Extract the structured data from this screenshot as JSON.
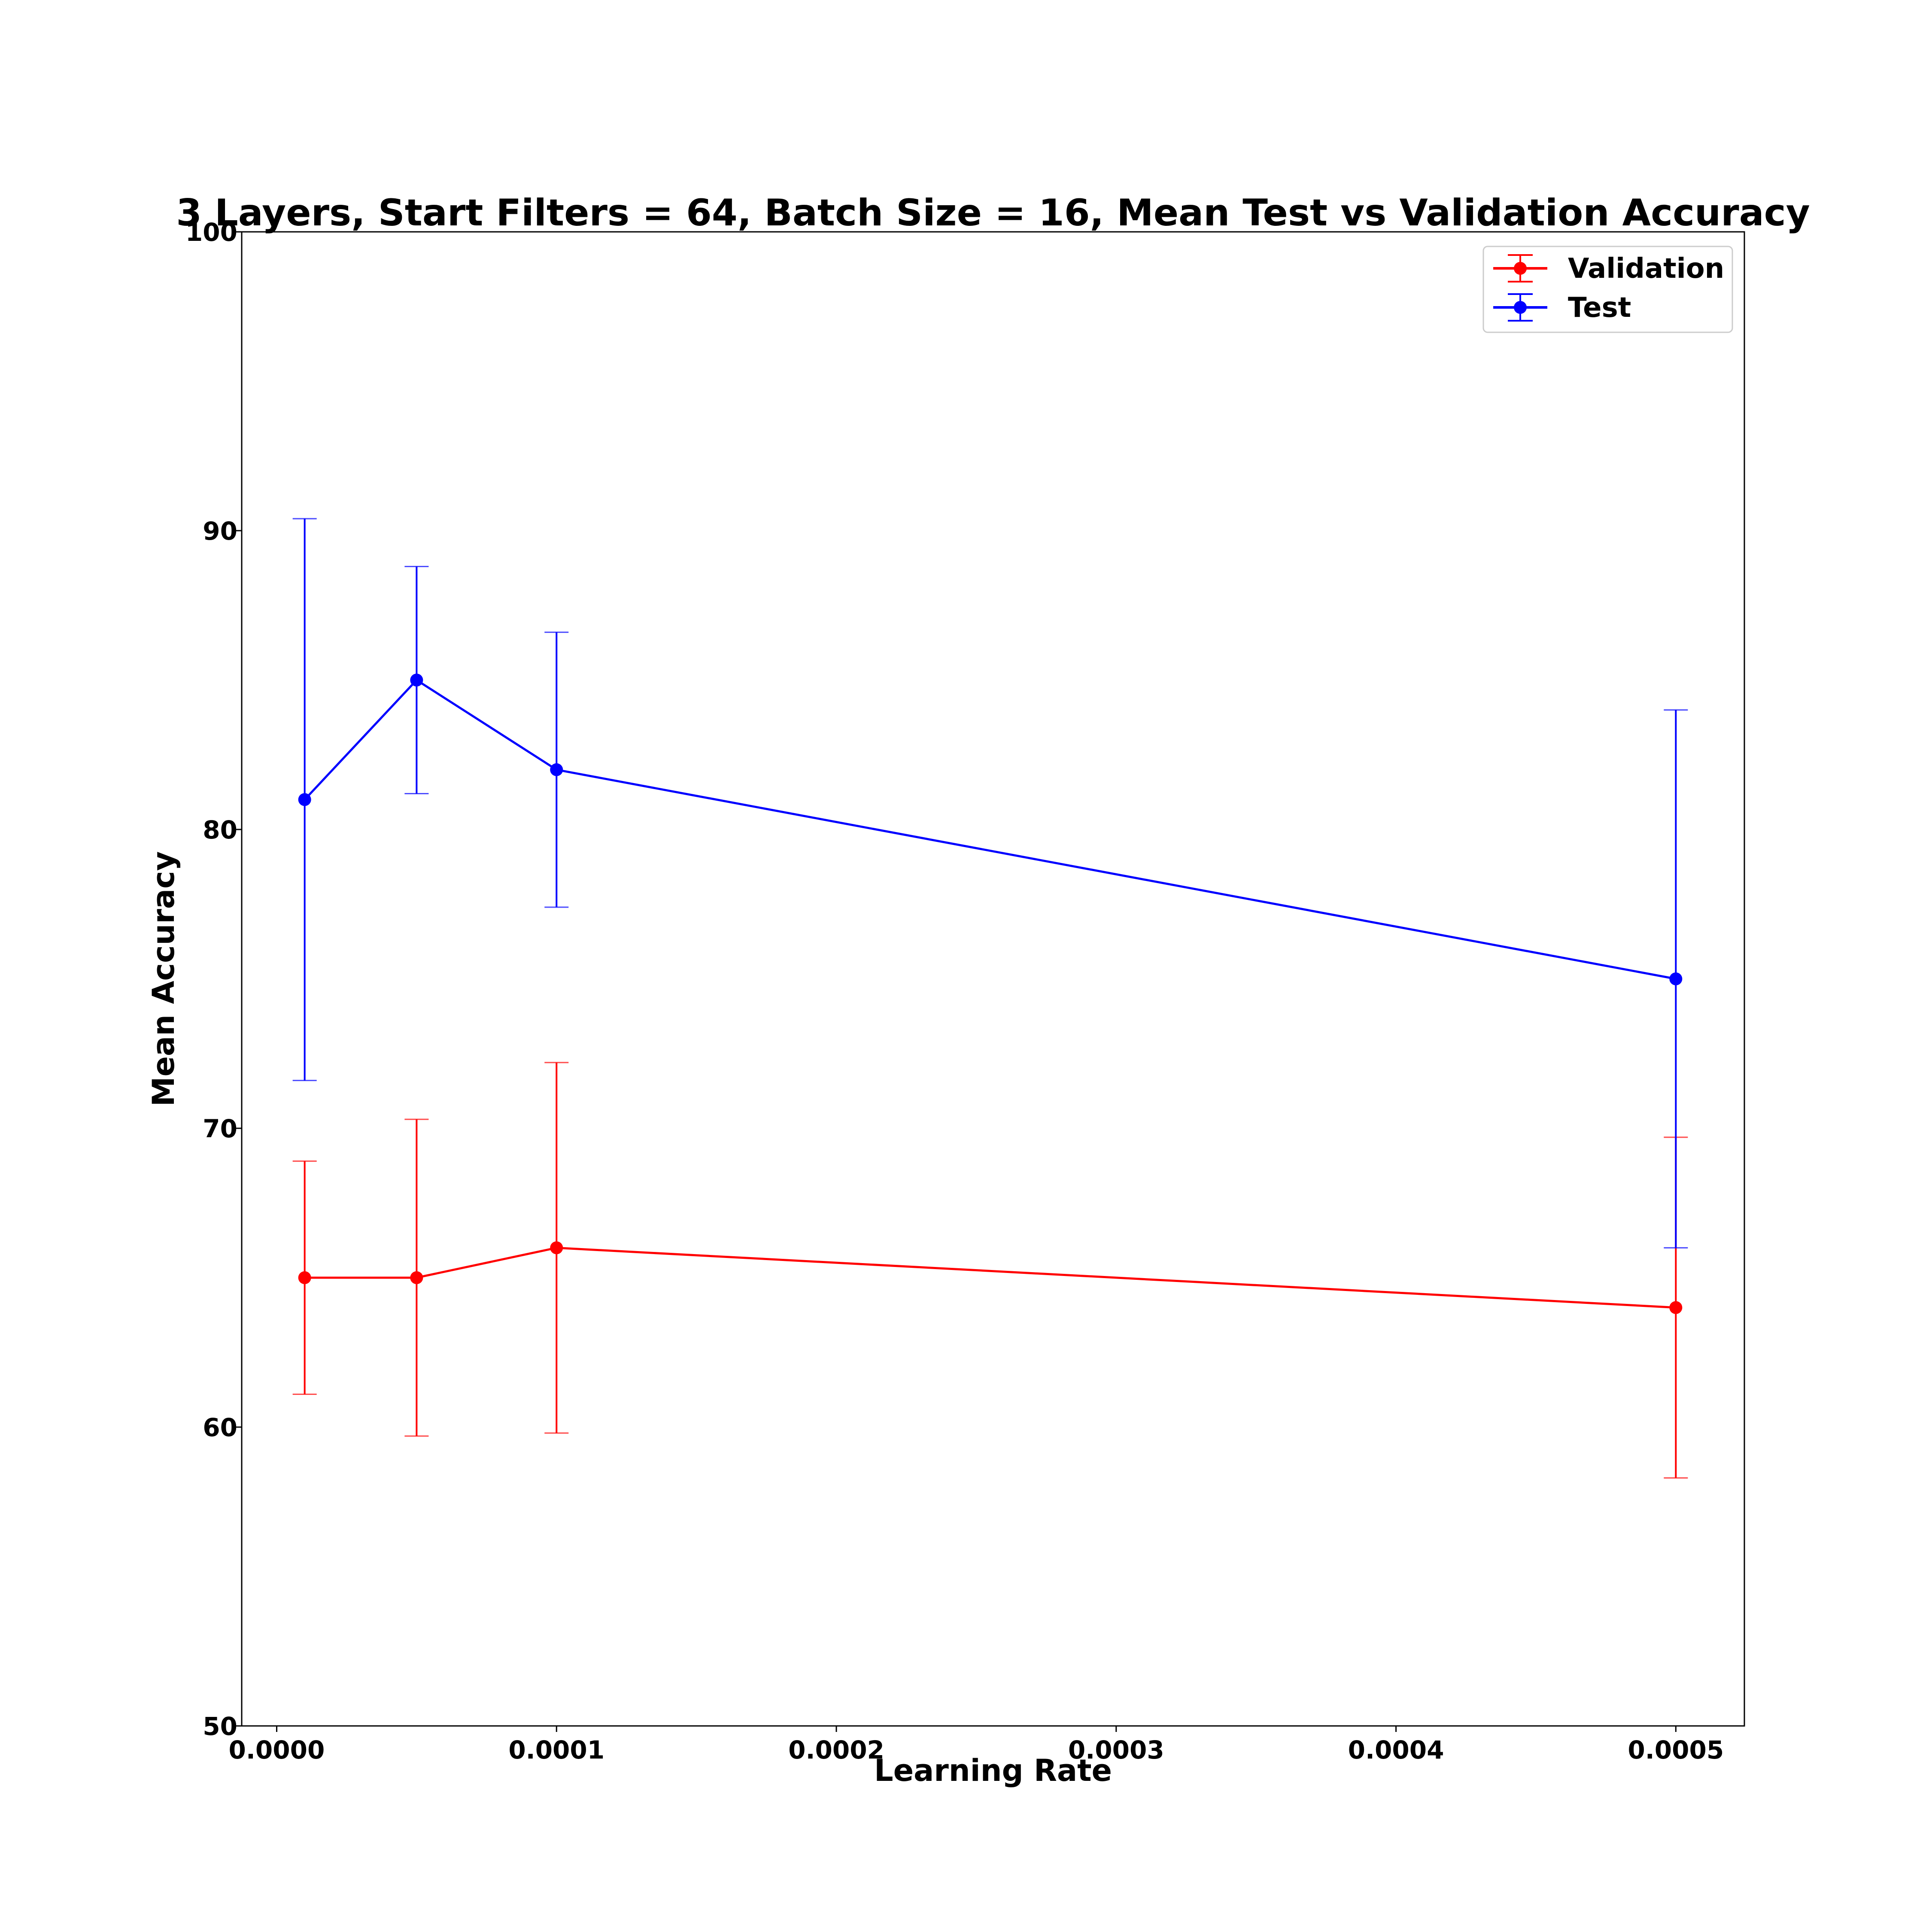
{
  "chart_data": {
    "type": "line",
    "title": "3 Layers, Start Filters = 64, Batch Size = 16, Mean Test vs Validation Accuracy",
    "xlabel": "Learning Rate",
    "ylabel": "Mean Accuracy",
    "xlim": [
      -1.25e-05,
      0.0005245
    ],
    "ylim": [
      50,
      100
    ],
    "x_ticks": [
      0.0,
      0.0001,
      0.0002,
      0.0003,
      0.0004,
      0.0005
    ],
    "x_tick_labels": [
      "0.0000",
      "0.0001",
      "0.0002",
      "0.0003",
      "0.0004",
      "0.0005"
    ],
    "y_ticks": [
      50,
      60,
      70,
      80,
      90,
      100
    ],
    "y_tick_labels": [
      "50",
      "60",
      "70",
      "80",
      "90",
      "100"
    ],
    "grid": false,
    "legend_position": "top-right",
    "x": [
      1e-05,
      5e-05,
      0.0001,
      0.0005
    ],
    "series": [
      {
        "name": "Validation",
        "color": "#ff0000",
        "values": [
          65.0,
          65.0,
          66.0,
          64.0
        ],
        "error": [
          3.9,
          5.3,
          6.2,
          5.7
        ]
      },
      {
        "name": "Test",
        "color": "#0000ff",
        "values": [
          81.0,
          85.0,
          82.0,
          75.0
        ],
        "error": [
          9.4,
          3.8,
          4.6,
          9.0
        ]
      }
    ]
  }
}
